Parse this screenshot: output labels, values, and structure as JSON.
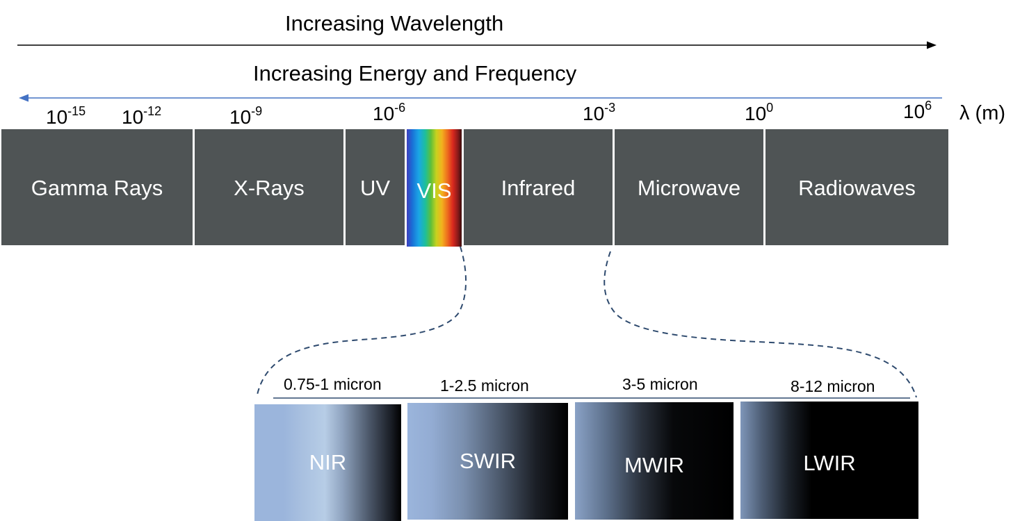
{
  "arrows": {
    "wavelength_label": "Increasing Wavelength",
    "energy_label": "Increasing Energy and Frequency"
  },
  "ticks": [
    {
      "base": "10",
      "exp": "-15"
    },
    {
      "base": "10",
      "exp": "-12"
    },
    {
      "base": "10",
      "exp": "-9"
    },
    {
      "base": "10",
      "exp": "-6"
    },
    {
      "base": "10",
      "exp": "-3"
    },
    {
      "base": "10",
      "exp": "0"
    },
    {
      "base": "10",
      "exp": "6"
    }
  ],
  "axis_unit": "λ (m)",
  "bands": [
    {
      "label": "Gamma Rays"
    },
    {
      "label": "X-Rays"
    },
    {
      "label": "UV"
    },
    {
      "label": "VIS"
    },
    {
      "label": "Infrared"
    },
    {
      "label": "Microwave"
    },
    {
      "label": "Radiowaves"
    }
  ],
  "infrared_subbands": [
    {
      "range": "0.75-1 micron",
      "label": "NIR"
    },
    {
      "range": "1-2.5 micron",
      "label": "SWIR"
    },
    {
      "range": "3-5 micron",
      "label": "MWIR"
    },
    {
      "range": "8-12 micron",
      "label": "LWIR"
    }
  ],
  "colors": {
    "band_fill": "#4f5455",
    "energy_arrow": "#4472c4",
    "dashed_connector": "#2e4a6e",
    "ir_light": "#9bb5dc"
  }
}
